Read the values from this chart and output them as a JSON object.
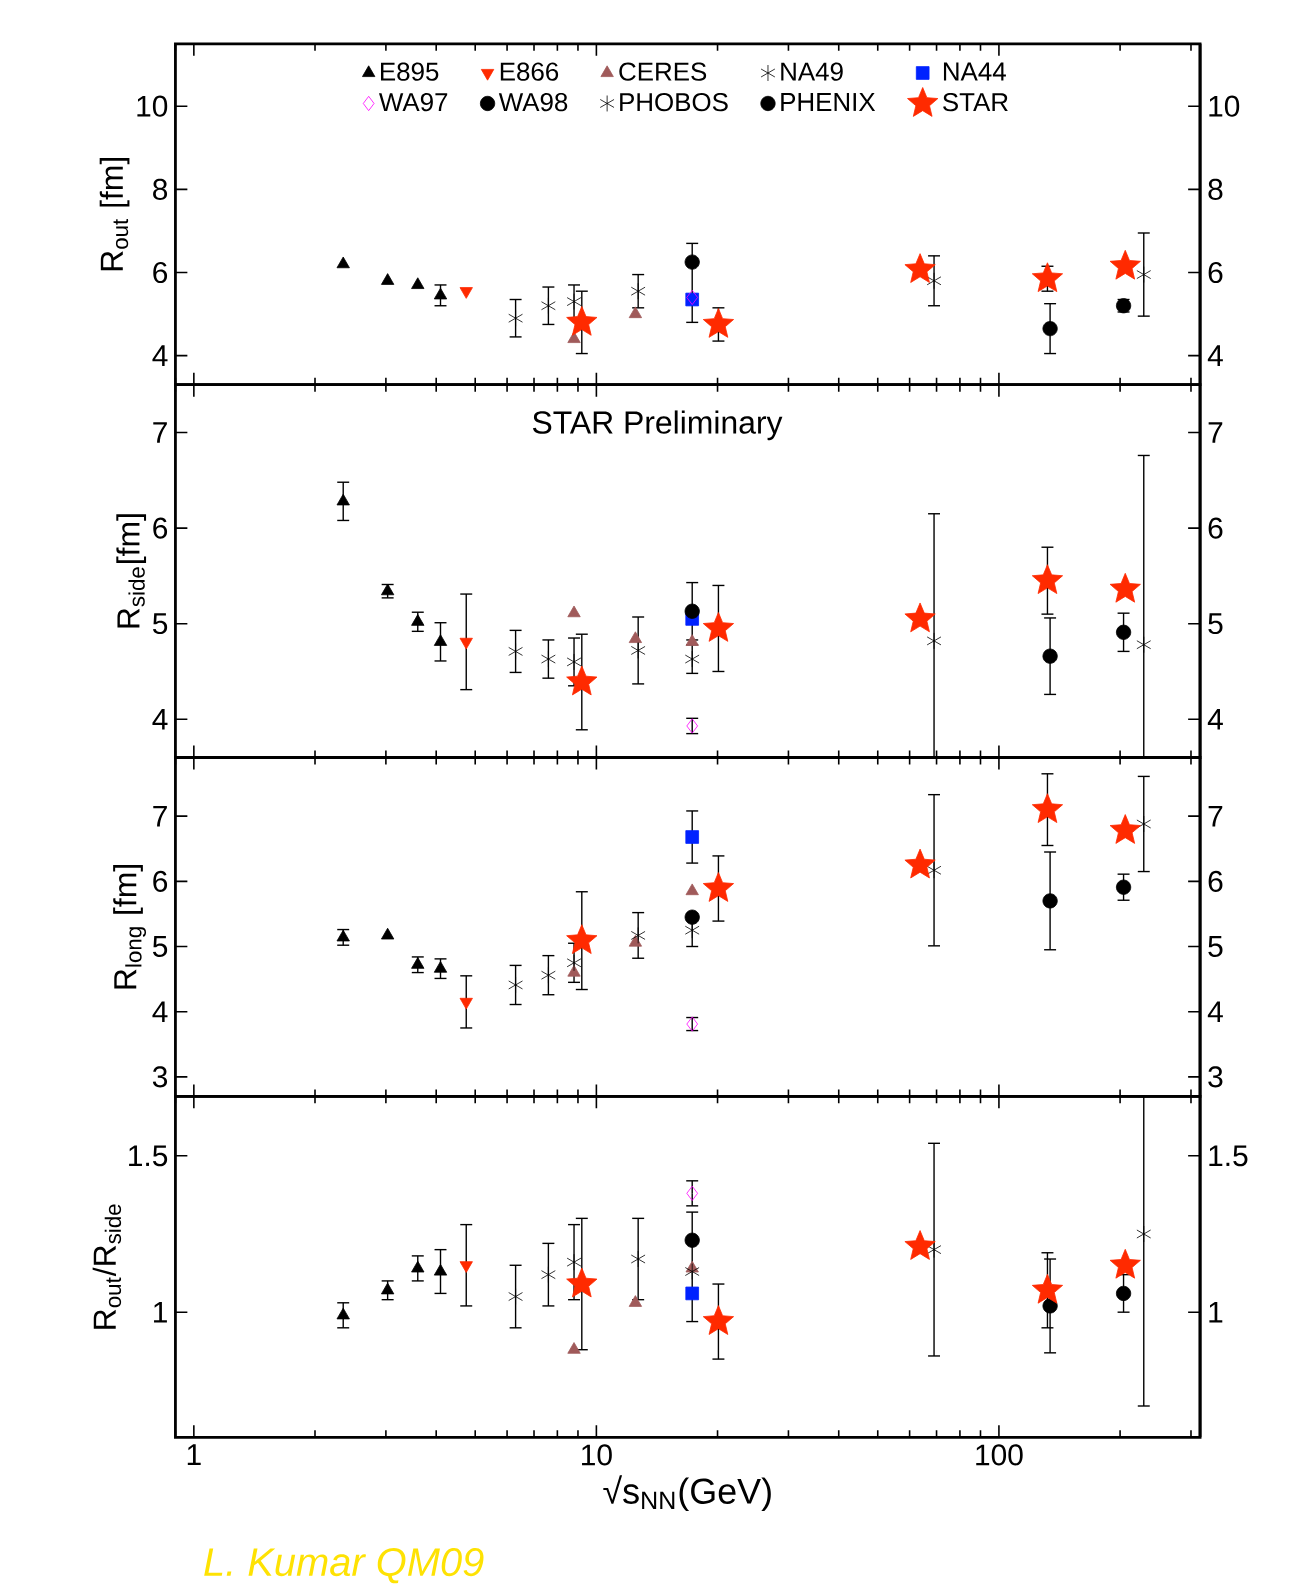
{
  "chart_data": [
    {
      "type": "scatter",
      "ylabel": "R$_{out}$ [fm]",
      "xlim": [
        0.9,
        316
      ],
      "xticks": [
        1,
        10,
        100
      ],
      "ylim": [
        3.3,
        11.5
      ],
      "yticks": [
        4,
        6,
        8,
        10
      ],
      "y2lim": [
        3.3,
        11.5
      ],
      "y2ticks": [
        4,
        6,
        8,
        10
      ],
      "log": "x",
      "tick_labels": "y",
      "legend": "top",
      "series": [
        {
          "name": "E895",
          "color": "#000000",
          "marker": "triangle",
          "x": [
            2.35,
            3.03,
            3.6,
            4.1
          ],
          "values": [
            6.2,
            5.8,
            5.7,
            5.45
          ],
          "errors": [
            null,
            null,
            null,
            0.25
          ]
        },
        {
          "name": "E866",
          "color": "#ff2a00",
          "marker": "triangle down",
          "x": [
            4.75
          ],
          "values": [
            5.55
          ],
          "errors": [
            null
          ]
        },
        {
          "name": "CERES",
          "color": "#a05a5a",
          "marker": "triangle",
          "x": [
            8.8,
            12.5
          ],
          "values": [
            4.4,
            5.0
          ],
          "errors": [
            null,
            null
          ]
        },
        {
          "name": "NA49",
          "color": "#000000",
          "marker": "cross",
          "x": [
            6.3,
            7.6,
            8.8,
            12.7
          ],
          "values": [
            4.9,
            5.2,
            5.3,
            5.55
          ],
          "errors": [
            0.45,
            0.45,
            0.4,
            0.4
          ]
        },
        {
          "name": "NA44",
          "color": "#0022ff",
          "marker": "square",
          "x": [
            17.3
          ],
          "values": [
            5.35
          ],
          "errors": [
            null
          ]
        },
        {
          "name": "WA97",
          "color": "#ff00ff",
          "marker": "diamond",
          "x": [
            17.3
          ],
          "values": [
            5.4
          ],
          "errors": [
            null
          ]
        },
        {
          "name": "WA98",
          "color": "#000000",
          "marker": "circle",
          "x": [
            17.3
          ],
          "values": [
            6.25
          ],
          "errors": [
            [
              4.8,
              6.7
            ]
          ]
        },
        {
          "name": "PHOBOS",
          "color": "#000000",
          "marker": "cross",
          "x": [
            69,
            229
          ],
          "values": [
            5.8,
            5.95
          ],
          "errors": [
            0.6,
            1.0
          ]
        },
        {
          "name": "PHENIX",
          "color": "#000000",
          "marker": "circle",
          "x": [
            134,
            204
          ],
          "values": [
            4.65,
            5.2
          ],
          "errors": [
            0.6,
            0.15
          ]
        },
        {
          "name": "STAR",
          "color": "#ff2a00",
          "marker": "star",
          "x": [
            9.2,
            20.1,
            63.7,
            132,
            206
          ],
          "values": [
            4.8,
            4.75,
            6.07,
            5.85,
            6.15
          ],
          "errors": [
            0.75,
            0.4,
            null,
            0.3,
            null
          ]
        }
      ]
    },
    {
      "type": "scatter",
      "ylabel": "R$_{side}$[fm]",
      "xlim": [
        0.9,
        316
      ],
      "xticks": [
        1,
        10,
        100
      ],
      "ylim": [
        3.6,
        7.5
      ],
      "yticks": [
        4,
        5,
        6,
        7
      ],
      "y2lim": [
        3.6,
        7.5
      ],
      "y2ticks": [
        4,
        5,
        6,
        7
      ],
      "log": "x",
      "tick_labels": "y",
      "annotations": [
        "STAR Preliminary"
      ],
      "series": [
        {
          "color": "#000000",
          "marker": "triangle",
          "x": [
            2.35,
            3.03,
            3.6,
            4.1
          ],
          "values": [
            6.28,
            5.34,
            5.02,
            4.81
          ],
          "errors": [
            0.2,
            0.07,
            0.1,
            0.2
          ]
        },
        {
          "color": "#ff2a00",
          "marker": "triangle down",
          "x": [
            4.75
          ],
          "values": [
            4.81
          ],
          "errors": [
            0.5
          ]
        },
        {
          "color": "#a05a5a",
          "marker": "triangle",
          "x": [
            8.8,
            12.5,
            17.3
          ],
          "values": [
            5.11,
            4.84,
            4.81
          ],
          "errors": [
            null,
            null,
            null
          ]
        },
        {
          "color": "#000000",
          "marker": "cross",
          "x": [
            6.3,
            7.6,
            8.8,
            12.7,
            17.3
          ],
          "values": [
            4.71,
            4.63,
            4.6,
            4.72,
            4.63
          ],
          "errors": [
            0.22,
            0.2,
            0.25,
            0.35,
            0.15
          ]
        },
        {
          "color": "#0022ff",
          "marker": "square",
          "x": [
            17.3
          ],
          "values": [
            5.05
          ],
          "errors": [
            null
          ]
        },
        {
          "color": "#ff00ff",
          "marker": "diamond",
          "x": [
            17.3
          ],
          "values": [
            3.93
          ],
          "errors": [
            0.08
          ]
        },
        {
          "color": "#000000",
          "marker": "circle",
          "x": [
            17.3
          ],
          "values": [
            5.13
          ],
          "errors": [
            0.3
          ]
        },
        {
          "color": "#000000",
          "marker": "cross",
          "x": [
            69,
            229
          ],
          "values": [
            4.82,
            4.78
          ],
          "errors": [
            [
              3.6,
              6.15
            ],
            [
              3.6,
              6.76
            ]
          ]
        },
        {
          "color": "#000000",
          "marker": "circle",
          "x": [
            134,
            204
          ],
          "values": [
            4.66,
            4.91
          ],
          "errors": [
            0.4,
            0.2
          ]
        },
        {
          "color": "#ff2a00",
          "marker": "star",
          "x": [
            9.2,
            20.1,
            63.7,
            132,
            206
          ],
          "values": [
            4.39,
            4.95,
            5.05,
            5.45,
            5.36
          ],
          "errors": [
            0.5,
            0.45,
            null,
            0.35,
            null
          ]
        }
      ]
    },
    {
      "type": "scatter",
      "ylabel": "R$_{long}$ [fm]",
      "xlim": [
        0.9,
        316
      ],
      "xticks": [
        1,
        10,
        100
      ],
      "ylim": [
        2.7,
        7.9
      ],
      "yticks": [
        3,
        4,
        5,
        6,
        7
      ],
      "y2lim": [
        2.7,
        7.9
      ],
      "y2ticks": [
        3,
        4,
        5,
        6,
        7
      ],
      "log": "x",
      "tick_labels": "y",
      "series": [
        {
          "color": "#000000",
          "marker": "triangle",
          "x": [
            2.35,
            3.03,
            3.6,
            4.1
          ],
          "values": [
            5.14,
            5.17,
            4.72,
            4.66
          ],
          "errors": [
            0.12,
            null,
            0.12,
            0.15
          ]
        },
        {
          "color": "#ff2a00",
          "marker": "triangle down",
          "x": [
            4.75
          ],
          "values": [
            4.15
          ],
          "errors": [
            0.4
          ]
        },
        {
          "color": "#a05a5a",
          "marker": "triangle",
          "x": [
            8.8,
            12.5,
            17.3
          ],
          "values": [
            4.6,
            5.06,
            5.85
          ],
          "errors": [
            null,
            null,
            null
          ]
        },
        {
          "color": "#000000",
          "marker": "cross",
          "x": [
            6.3,
            7.6,
            8.8,
            12.7,
            17.3
          ],
          "values": [
            4.41,
            4.56,
            4.75,
            5.17,
            5.25
          ],
          "errors": [
            0.3,
            0.3,
            0.3,
            0.35,
            0.25
          ]
        },
        {
          "color": "#0022ff",
          "marker": "square",
          "x": [
            17.3
          ],
          "values": [
            6.68
          ],
          "errors": [
            0.4
          ]
        },
        {
          "color": "#ff00ff",
          "marker": "diamond",
          "x": [
            17.3
          ],
          "values": [
            3.81
          ],
          "errors": [
            0.1
          ]
        },
        {
          "color": "#000000",
          "marker": "circle",
          "x": [
            17.3
          ],
          "values": [
            5.45
          ],
          "errors": [
            null
          ]
        },
        {
          "color": "#000000",
          "marker": "cross",
          "x": [
            69,
            229
          ],
          "values": [
            6.17,
            6.88
          ],
          "errors": [
            1.16,
            0.73
          ]
        },
        {
          "color": "#000000",
          "marker": "circle",
          "x": [
            134,
            204
          ],
          "values": [
            5.7,
            5.91
          ],
          "errors": [
            0.75,
            0.2
          ]
        },
        {
          "color": "#ff2a00",
          "marker": "star",
          "x": [
            9.2,
            20.1,
            63.7,
            132,
            206
          ],
          "values": [
            5.09,
            5.89,
            6.25,
            7.1,
            6.78
          ],
          "errors": [
            0.75,
            0.5,
            null,
            0.55,
            null
          ]
        }
      ]
    },
    {
      "type": "scatter",
      "ylabel": "R$_{out}$/R$_{side}$",
      "xlabel": "√s$_{NN}$(GeV)",
      "xlim": [
        0.9,
        316
      ],
      "xticks": [
        1,
        10,
        100
      ],
      "ylim": [
        0.6,
        1.69
      ],
      "yticks": [
        1,
        1.5
      ],
      "y2lim": [
        0.6,
        1.69
      ],
      "y2ticks": [
        1,
        1.5
      ],
      "log": "x",
      "annotations": [
        "L. Kumar QM09"
      ],
      "series": [
        {
          "color": "#000000",
          "marker": "triangle",
          "x": [
            2.35,
            3.03,
            3.6,
            4.1
          ],
          "values": [
            0.99,
            1.07,
            1.14,
            1.13
          ],
          "errors": [
            0.04,
            0.03,
            0.04,
            0.07
          ]
        },
        {
          "color": "#ff2a00",
          "marker": "triangle down",
          "x": [
            4.75
          ],
          "values": [
            1.15
          ],
          "errors": [
            0.13
          ]
        },
        {
          "color": "#a05a5a",
          "marker": "triangle",
          "x": [
            8.8,
            12.5,
            17.3
          ],
          "values": [
            0.88,
            1.03,
            1.14
          ],
          "errors": [
            null,
            null,
            null
          ]
        },
        {
          "color": "#000000",
          "marker": "cross",
          "x": [
            6.3,
            7.6,
            8.8,
            12.7,
            17.3
          ],
          "values": [
            1.05,
            1.12,
            1.16,
            1.17,
            1.13
          ],
          "errors": [
            0.1,
            0.1,
            0.12,
            0.13,
            null
          ]
        },
        {
          "color": "#0022ff",
          "marker": "square",
          "x": [
            17.3
          ],
          "values": [
            1.06
          ],
          "errors": [
            null
          ]
        },
        {
          "color": "#ff00ff",
          "marker": "diamond",
          "x": [
            17.3
          ],
          "values": [
            1.38
          ],
          "errors": [
            0.04
          ]
        },
        {
          "color": "#000000",
          "marker": "circle",
          "x": [
            17.3
          ],
          "values": [
            1.23
          ],
          "errors": [
            [
              0.97,
              1.32
            ]
          ]
        },
        {
          "color": "#000000",
          "marker": "cross",
          "x": [
            69,
            229
          ],
          "values": [
            1.2,
            1.25
          ],
          "errors": [
            0.34,
            [
              0.7,
              1.69
            ]
          ]
        },
        {
          "color": "#000000",
          "marker": "circle",
          "x": [
            134,
            204
          ],
          "values": [
            1.02,
            1.06
          ],
          "errors": [
            0.15,
            0.06
          ]
        },
        {
          "color": "#ff2a00",
          "marker": "star",
          "x": [
            9.2,
            20.1,
            63.7,
            132,
            206
          ],
          "values": [
            1.09,
            0.97,
            1.21,
            1.07,
            1.15
          ],
          "errors": [
            0.21,
            0.12,
            null,
            0.12,
            null
          ]
        }
      ]
    }
  ]
}
